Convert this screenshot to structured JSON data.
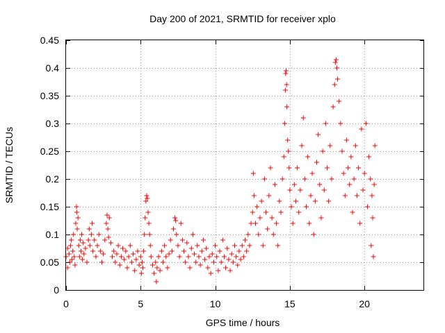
{
  "chart_data": {
    "type": "scatter",
    "title": "Day 200 of 2021, SRMTID for receiver xplo",
    "xlabel": "GPS time / hours",
    "ylabel": "SRMTID / TECUs",
    "xlim": [
      0,
      24
    ],
    "ylim": [
      0,
      0.45
    ],
    "xticks": [
      0,
      5,
      10,
      15,
      20
    ],
    "xtick_labels": [
      "0",
      "5",
      "10",
      "15",
      "20"
    ],
    "yticks": [
      0,
      0.05,
      0.1,
      0.15,
      0.2,
      0.25,
      0.3,
      0.35,
      0.4,
      0.45
    ],
    "ytick_labels": [
      "0",
      "0.05",
      "0.1",
      "0.15",
      "0.2",
      "0.25",
      "0.3",
      "0.35",
      "0.4",
      "0.45"
    ],
    "grid": true,
    "marker": "+",
    "color": "#ff0000",
    "series": [
      {
        "points": [
          [
            0.0,
            0.06
          ],
          [
            0.1,
            0.04
          ],
          [
            0.1,
            0.075
          ],
          [
            0.2,
            0.065
          ],
          [
            0.25,
            0.05
          ],
          [
            0.3,
            0.08
          ],
          [
            0.35,
            0.09
          ],
          [
            0.4,
            0.055
          ],
          [
            0.45,
            0.07
          ],
          [
            0.5,
            0.1
          ],
          [
            0.55,
            0.06
          ],
          [
            0.6,
            0.045
          ],
          [
            0.65,
            0.12
          ],
          [
            0.7,
            0.15
          ],
          [
            0.72,
            0.14
          ],
          [
            0.75,
            0.11
          ],
          [
            0.8,
            0.13
          ],
          [
            0.85,
            0.08
          ],
          [
            0.9,
            0.06
          ],
          [
            0.95,
            0.09
          ],
          [
            1.0,
            0.07
          ],
          [
            1.05,
            0.1
          ],
          [
            1.1,
            0.055
          ],
          [
            1.15,
            0.085
          ],
          [
            1.2,
            0.065
          ],
          [
            1.3,
            0.075
          ],
          [
            1.4,
            0.05
          ],
          [
            1.5,
            0.09
          ],
          [
            1.55,
            0.11
          ],
          [
            1.6,
            0.08
          ],
          [
            1.7,
            0.1
          ],
          [
            1.75,
            0.12
          ],
          [
            1.8,
            0.07
          ],
          [
            1.9,
            0.09
          ],
          [
            2.0,
            0.06
          ],
          [
            2.1,
            0.08
          ],
          [
            2.2,
            0.1
          ],
          [
            2.3,
            0.07
          ],
          [
            2.4,
            0.05
          ],
          [
            2.5,
            0.065
          ],
          [
            2.6,
            0.09
          ],
          [
            2.7,
            0.12
          ],
          [
            2.75,
            0.135
          ],
          [
            2.8,
            0.11
          ],
          [
            2.85,
            0.095
          ],
          [
            2.9,
            0.13
          ],
          [
            3.0,
            0.085
          ],
          [
            3.1,
            0.06
          ],
          [
            3.2,
            0.07
          ],
          [
            3.3,
            0.05
          ],
          [
            3.4,
            0.065
          ],
          [
            3.5,
            0.08
          ],
          [
            3.6,
            0.045
          ],
          [
            3.7,
            0.06
          ],
          [
            3.8,
            0.075
          ],
          [
            3.9,
            0.055
          ],
          [
            4.0,
            0.07
          ],
          [
            4.1,
            0.04
          ],
          [
            4.2,
            0.06
          ],
          [
            4.3,
            0.08
          ],
          [
            4.4,
            0.05
          ],
          [
            4.5,
            0.065
          ],
          [
            4.6,
            0.035
          ],
          [
            4.7,
            0.055
          ],
          [
            4.8,
            0.07
          ],
          [
            4.9,
            0.045
          ],
          [
            5.0,
            0.06
          ],
          [
            5.05,
            0.03
          ],
          [
            5.1,
            0.05
          ],
          [
            5.15,
            0.04
          ],
          [
            5.2,
            0.07
          ],
          [
            5.25,
            0.1
          ],
          [
            5.3,
            0.13
          ],
          [
            5.35,
            0.16
          ],
          [
            5.4,
            0.17
          ],
          [
            5.45,
            0.165
          ],
          [
            5.5,
            0.14
          ],
          [
            5.55,
            0.12
          ],
          [
            5.6,
            0.1
          ],
          [
            5.65,
            0.08
          ],
          [
            5.7,
            0.06
          ],
          [
            5.8,
            0.045
          ],
          [
            5.9,
            0.03
          ],
          [
            6.0,
            0.05
          ],
          [
            6.05,
            0.015
          ],
          [
            6.1,
            0.04
          ],
          [
            6.2,
            0.06
          ],
          [
            6.3,
            0.035
          ],
          [
            6.4,
            0.07
          ],
          [
            6.5,
            0.05
          ],
          [
            6.6,
            0.08
          ],
          [
            6.7,
            0.06
          ],
          [
            6.8,
            0.04
          ],
          [
            6.9,
            0.065
          ],
          [
            7.0,
            0.09
          ],
          [
            7.1,
            0.07
          ],
          [
            7.2,
            0.11
          ],
          [
            7.3,
            0.13
          ],
          [
            7.35,
            0.125
          ],
          [
            7.4,
            0.1
          ],
          [
            7.5,
            0.08
          ],
          [
            7.6,
            0.06
          ],
          [
            7.7,
            0.12
          ],
          [
            7.8,
            0.09
          ],
          [
            7.9,
            0.07
          ],
          [
            8.0,
            0.05
          ],
          [
            8.1,
            0.085
          ],
          [
            8.2,
            0.06
          ],
          [
            8.3,
            0.04
          ],
          [
            8.4,
            0.075
          ],
          [
            8.5,
            0.1
          ],
          [
            8.6,
            0.065
          ],
          [
            8.7,
            0.05
          ],
          [
            8.8,
            0.08
          ],
          [
            8.9,
            0.06
          ],
          [
            9.0,
            0.045
          ],
          [
            9.1,
            0.07
          ],
          [
            9.2,
            0.09
          ],
          [
            9.3,
            0.055
          ],
          [
            9.4,
            0.075
          ],
          [
            9.5,
            0.04
          ],
          [
            9.6,
            0.06
          ],
          [
            9.7,
            0.03
          ],
          [
            9.8,
            0.065
          ],
          [
            9.9,
            0.05
          ],
          [
            10.0,
            0.08
          ],
          [
            10.1,
            0.06
          ],
          [
            10.2,
            0.035
          ],
          [
            10.3,
            0.07
          ],
          [
            10.4,
            0.05
          ],
          [
            10.5,
            0.09
          ],
          [
            10.6,
            0.06
          ],
          [
            10.7,
            0.04
          ],
          [
            10.8,
            0.075
          ],
          [
            10.9,
            0.055
          ],
          [
            11.0,
            0.035
          ],
          [
            11.1,
            0.065
          ],
          [
            11.2,
            0.05
          ],
          [
            11.3,
            0.08
          ],
          [
            11.4,
            0.06
          ],
          [
            11.5,
            0.045
          ],
          [
            11.6,
            0.07
          ],
          [
            11.7,
            0.055
          ],
          [
            11.8,
            0.08
          ],
          [
            11.9,
            0.06
          ],
          [
            12.0,
            0.09
          ],
          [
            12.1,
            0.07
          ],
          [
            12.2,
            0.1
          ],
          [
            12.3,
            0.08
          ],
          [
            12.4,
            0.12
          ],
          [
            12.5,
            0.14
          ],
          [
            12.55,
            0.21
          ],
          [
            12.6,
            0.17
          ],
          [
            12.7,
            0.12
          ],
          [
            12.8,
            0.15
          ],
          [
            12.9,
            0.1
          ],
          [
            13.0,
            0.13
          ],
          [
            13.1,
            0.16
          ],
          [
            13.2,
            0.08
          ],
          [
            13.3,
            0.2
          ],
          [
            13.4,
            0.14
          ],
          [
            13.5,
            0.11
          ],
          [
            13.6,
            0.17
          ],
          [
            13.7,
            0.22
          ],
          [
            13.8,
            0.13
          ],
          [
            13.9,
            0.1
          ],
          [
            14.0,
            0.19
          ],
          [
            14.1,
            0.12
          ],
          [
            14.2,
            0.08
          ],
          [
            14.3,
            0.16
          ],
          [
            14.4,
            0.14
          ],
          [
            14.5,
            0.2
          ],
          [
            14.6,
            0.24
          ],
          [
            14.65,
            0.3
          ],
          [
            14.7,
            0.36
          ],
          [
            14.72,
            0.39
          ],
          [
            14.75,
            0.395
          ],
          [
            14.78,
            0.37
          ],
          [
            14.8,
            0.33
          ],
          [
            14.85,
            0.27
          ],
          [
            14.9,
            0.25
          ],
          [
            14.95,
            0.22
          ],
          [
            15.0,
            0.18
          ],
          [
            15.1,
            0.15
          ],
          [
            15.2,
            0.12
          ],
          [
            15.3,
            0.19
          ],
          [
            15.4,
            0.16
          ],
          [
            15.5,
            0.22
          ],
          [
            15.6,
            0.14
          ],
          [
            15.7,
            0.18
          ],
          [
            15.8,
            0.26
          ],
          [
            15.9,
            0.31
          ],
          [
            16.0,
            0.2
          ],
          [
            16.1,
            0.15
          ],
          [
            16.2,
            0.24
          ],
          [
            16.3,
            0.12
          ],
          [
            16.4,
            0.17
          ],
          [
            16.5,
            0.21
          ],
          [
            16.6,
            0.1
          ],
          [
            16.7,
            0.16
          ],
          [
            16.8,
            0.23
          ],
          [
            16.9,
            0.28
          ],
          [
            17.0,
            0.19
          ],
          [
            17.1,
            0.13
          ],
          [
            17.2,
            0.25
          ],
          [
            17.3,
            0.18
          ],
          [
            17.4,
            0.3
          ],
          [
            17.5,
            0.22
          ],
          [
            17.6,
            0.16
          ],
          [
            17.7,
            0.26
          ],
          [
            17.8,
            0.2
          ],
          [
            17.9,
            0.33
          ],
          [
            18.0,
            0.37
          ],
          [
            18.05,
            0.41
          ],
          [
            18.1,
            0.415
          ],
          [
            18.15,
            0.4
          ],
          [
            18.2,
            0.38
          ],
          [
            18.3,
            0.34
          ],
          [
            18.4,
            0.3
          ],
          [
            18.5,
            0.25
          ],
          [
            18.6,
            0.21
          ],
          [
            18.7,
            0.17
          ],
          [
            18.8,
            0.27
          ],
          [
            18.9,
            0.22
          ],
          [
            19.0,
            0.19
          ],
          [
            19.1,
            0.24
          ],
          [
            19.2,
            0.14
          ],
          [
            19.3,
            0.2
          ],
          [
            19.4,
            0.26
          ],
          [
            19.5,
            0.17
          ],
          [
            19.6,
            0.22
          ],
          [
            19.7,
            0.12
          ],
          [
            19.8,
            0.29
          ],
          [
            19.9,
            0.18
          ],
          [
            20.0,
            0.21
          ],
          [
            20.1,
            0.3
          ],
          [
            20.2,
            0.15
          ],
          [
            20.3,
            0.24
          ],
          [
            20.4,
            0.2
          ],
          [
            20.45,
            0.08
          ],
          [
            20.5,
            0.17
          ],
          [
            20.55,
            0.13
          ],
          [
            20.6,
            0.06
          ],
          [
            20.65,
            0.19
          ],
          [
            20.7,
            0.26
          ]
        ]
      }
    ]
  }
}
